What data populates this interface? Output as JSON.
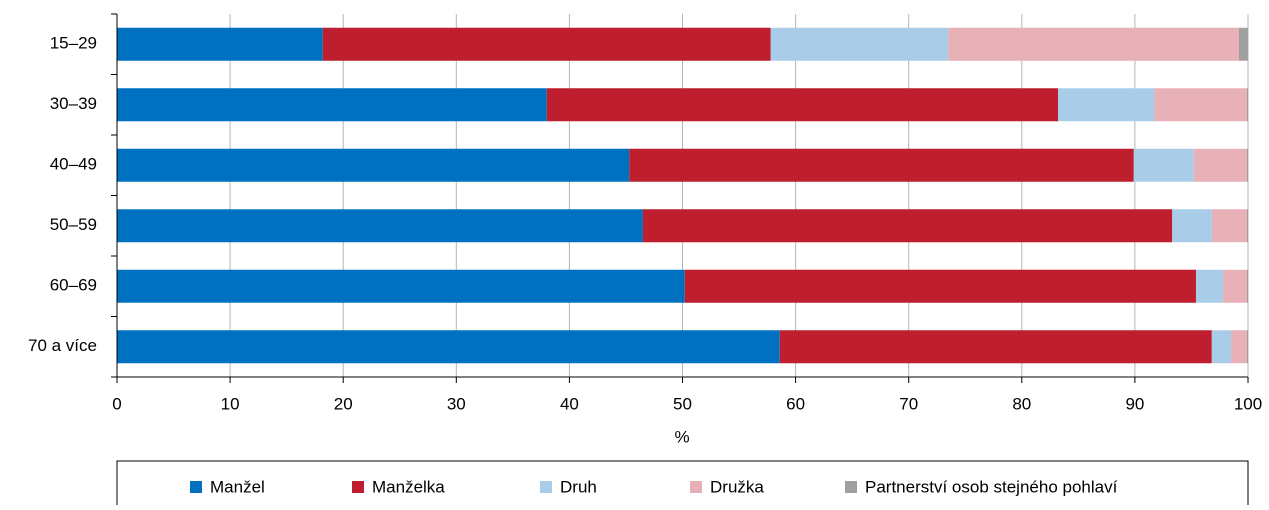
{
  "chart_data": {
    "type": "stacked-bar-horizontal",
    "categories": [
      "15–29",
      "30–39",
      "40–49",
      "50–59",
      "60–69",
      "70 a více"
    ],
    "series": [
      {
        "name": "Manžel",
        "color": "#0070c0",
        "values": [
          18.2,
          38.0,
          45.3,
          46.5,
          50.2,
          58.6
        ]
      },
      {
        "name": "Manželka",
        "color": "#be1e2d",
        "values": [
          39.6,
          45.2,
          44.6,
          46.8,
          45.2,
          38.2
        ]
      },
      {
        "name": "Druh",
        "color": "#a9cde9",
        "values": [
          15.7,
          8.5,
          5.3,
          3.5,
          2.4,
          1.7
        ]
      },
      {
        "name": "Družka",
        "color": "#e8b1b7",
        "values": [
          25.7,
          8.2,
          4.7,
          3.1,
          2.1,
          1.4
        ]
      },
      {
        "name": "Partnerství osob stejného pohlaví",
        "color": "#a0a0a0",
        "values": [
          0.8,
          0.1,
          0.1,
          0.1,
          0.1,
          0.1
        ]
      }
    ],
    "xlabel": "%",
    "xlim": [
      0,
      100
    ],
    "xticks": [
      0,
      10,
      20,
      30,
      40,
      50,
      60,
      70,
      80,
      90,
      100
    ],
    "grid": true
  }
}
